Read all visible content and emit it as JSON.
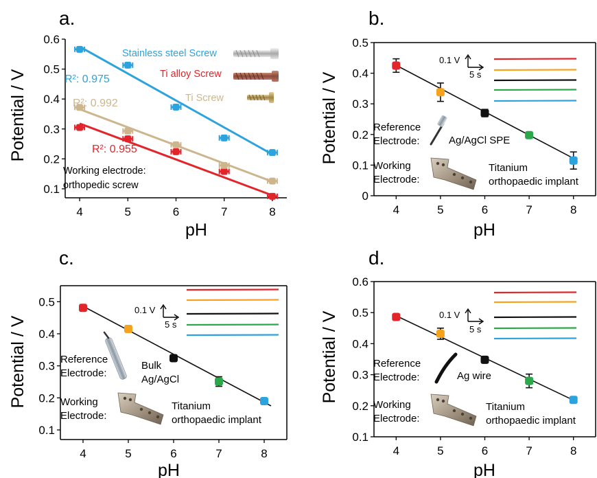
{
  "colors": {
    "red": "#e2252b",
    "orange": "#f5a21f",
    "black": "#111111",
    "green": "#2aa84a",
    "blue": "#2ca3dd",
    "tan": "#cdb68e",
    "axis": "#000000"
  },
  "chart_data": [
    {
      "id": "a",
      "panel_label": "a.",
      "type": "scatter",
      "xlabel": "pH",
      "ylabel": "Potential / V",
      "xlim": [
        3.7,
        8.3
      ],
      "ylim": [
        0.07,
        0.6
      ],
      "xticks": [
        "4",
        "5",
        "6",
        "7",
        "8"
      ],
      "yticks": [
        "0.1",
        "0.2",
        "0.3",
        "0.4",
        "0.5",
        "0.6"
      ],
      "series": [
        {
          "name": "Stainless steel Screw",
          "color": "#2ca3dd",
          "x": [
            4,
            5,
            6,
            7,
            8
          ],
          "y": [
            0.566,
            0.513,
            0.373,
            0.27,
            0.221
          ],
          "fit": [
            [
              4,
              0.575
            ],
            [
              8,
              0.215
            ]
          ],
          "r2": "R²: 0.975"
        },
        {
          "name": "Ti alloy Screw",
          "color": "#e2252b",
          "x": [
            4,
            5,
            6,
            7,
            8
          ],
          "y": [
            0.305,
            0.267,
            0.224,
            0.158,
            0.075
          ],
          "fit": [
            [
              4,
              0.318
            ],
            [
              8,
              0.078
            ]
          ],
          "r2": "R²: 0.955"
        },
        {
          "name": "Ti Screw",
          "color": "#cdb68e",
          "x": [
            4,
            5,
            6,
            7,
            8
          ],
          "y": [
            0.372,
            0.293,
            0.247,
            0.178,
            0.126
          ],
          "fit": [
            [
              4,
              0.366
            ],
            [
              8,
              0.124
            ]
          ],
          "r2": "R²: 0.992"
        }
      ],
      "annotation_lines": [
        "Working electrode:",
        "orthopedic screw"
      ]
    },
    {
      "id": "b",
      "panel_label": "b.",
      "type": "scatter",
      "xlabel": "pH",
      "ylabel": "Potential / V",
      "xlim": [
        3.5,
        8.5
      ],
      "ylim": [
        0,
        0.5
      ],
      "xticks": [
        "4",
        "5",
        "6",
        "7",
        "8"
      ],
      "yticks": [
        "0",
        "0.1",
        "0.2",
        "0.3",
        "0.4",
        "0.5"
      ],
      "x": [
        4,
        5,
        6,
        7,
        8
      ],
      "y": [
        0.425,
        0.338,
        0.27,
        0.198,
        0.115
      ],
      "yerr": [
        0.022,
        0.03,
        0.012,
        0.006,
        0.028
      ],
      "colors": [
        "#e2252b",
        "#f5a21f",
        "#111111",
        "#2aa84a",
        "#2ca3dd"
      ],
      "fit": [
        [
          4,
          0.426
        ],
        [
          8,
          0.122
        ]
      ],
      "scale_bar": {
        "v": "0.1 V",
        "t": "5 s"
      },
      "reference_label": [
        "Reference",
        "Electrode:"
      ],
      "reference_name": [
        "Ag/AgCl SPE"
      ],
      "working_label": [
        "Working",
        "Electrode:"
      ],
      "working_name": [
        "Titanium",
        "orthopaedic implant"
      ]
    },
    {
      "id": "c",
      "panel_label": "c.",
      "type": "scatter",
      "xlabel": "pH",
      "ylabel": "Potential / V",
      "xlim": [
        3.5,
        8.5
      ],
      "ylim": [
        0.07,
        0.55
      ],
      "xticks": [
        "4",
        "5",
        "6",
        "7",
        "8"
      ],
      "yticks": [
        "0.1",
        "0.2",
        "0.3",
        "0.4",
        "0.5"
      ],
      "x": [
        4,
        5,
        6,
        7,
        8
      ],
      "y": [
        0.481,
        0.415,
        0.324,
        0.251,
        0.19
      ],
      "yerr": [
        0.01,
        0.01,
        0.01,
        0.015,
        0.008
      ],
      "colors": [
        "#e2252b",
        "#f5a21f",
        "#111111",
        "#2aa84a",
        "#2ca3dd"
      ],
      "fit": [
        [
          4,
          0.486
        ],
        [
          8.15,
          0.175
        ]
      ],
      "scale_bar": {
        "v": "0.1 V",
        "t": "5 s"
      },
      "reference_label": [
        "Reference",
        "Electrode:"
      ],
      "reference_name": [
        "Bulk",
        "Ag/AgCl"
      ],
      "working_label": [
        "Working",
        "Electrode:"
      ],
      "working_name": [
        "Titanium",
        "orthopaedic implant"
      ]
    },
    {
      "id": "d",
      "panel_label": "d.",
      "type": "scatter",
      "xlabel": "pH",
      "ylabel": "Potential / V",
      "xlim": [
        3.5,
        8.5
      ],
      "ylim": [
        0.1,
        0.6
      ],
      "xticks": [
        "4",
        "5",
        "6",
        "7",
        "8"
      ],
      "yticks": [
        "0.1",
        "0.2",
        "0.3",
        "0.4",
        "0.5",
        "0.6"
      ],
      "x": [
        4,
        5,
        6,
        7,
        8
      ],
      "y": [
        0.486,
        0.432,
        0.348,
        0.28,
        0.219
      ],
      "yerr": [
        0.008,
        0.018,
        0.01,
        0.022,
        0.01
      ],
      "colors": [
        "#e2252b",
        "#f5a21f",
        "#111111",
        "#2aa84a",
        "#2ca3dd"
      ],
      "fit": [
        [
          4,
          0.49
        ],
        [
          8,
          0.218
        ]
      ],
      "scale_bar": {
        "v": "0.1 V",
        "t": "5 s"
      },
      "reference_label": [
        "Reference",
        "Electrode:"
      ],
      "reference_name": [
        "Ag wire"
      ],
      "working_label": [
        "Working",
        "Electrode:"
      ],
      "working_name": [
        "Titanium",
        "orthopaedic implant"
      ]
    }
  ]
}
